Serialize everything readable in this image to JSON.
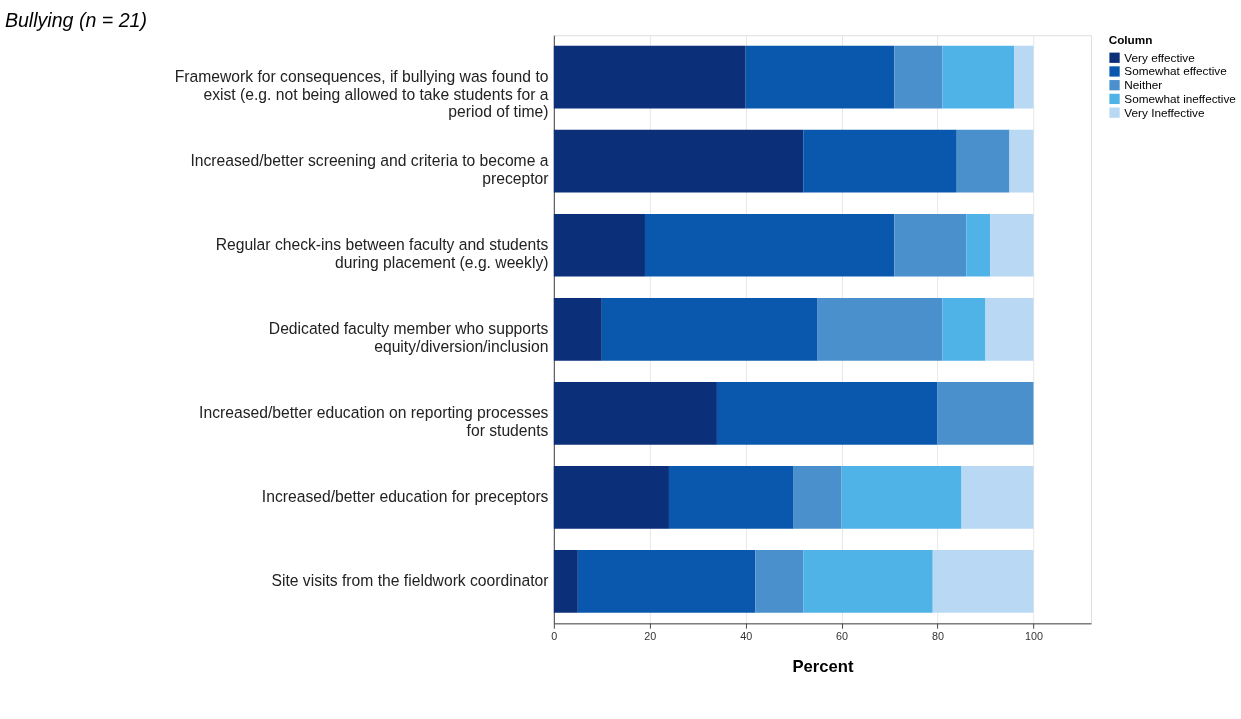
{
  "chart_data": {
    "type": "bar",
    "orientation": "horizontal",
    "stacked": true,
    "title": "Bullying (n = 21)",
    "categories": [
      "Framework for consequences, if bullying was found to exist (e.g. not being allowed to take students for a period of time)",
      "Increased/better screening and criteria to become a preceptor",
      "Regular check-ins between faculty and students during placement (e.g. weekly)",
      "Dedicated faculty member who supports equity/diversion/inclusion",
      "Increased/better education on reporting processes for students",
      "Increased/better education for preceptors",
      "Site visits from the fieldwork coordinator"
    ],
    "series": [
      {
        "name": "Very effective",
        "color": "#0b2f78",
        "values": [
          40,
          52,
          19,
          10,
          34,
          24,
          5
        ]
      },
      {
        "name": "Somewhat effective",
        "color": "#0a58ad",
        "values": [
          31,
          32,
          52,
          45,
          46,
          26,
          37
        ]
      },
      {
        "name": "Neither",
        "color": "#4a90cc",
        "values": [
          10,
          11,
          15,
          26,
          20,
          10,
          10
        ]
      },
      {
        "name": "Somewhat ineffective",
        "color": "#50b3e8",
        "values": [
          15,
          0,
          5,
          9,
          0,
          25,
          27
        ]
      },
      {
        "name": "Very Ineffective",
        "color": "#b8d8f4",
        "values": [
          4,
          5,
          9,
          10,
          0,
          15,
          21
        ]
      }
    ],
    "xlabel": "Percent",
    "legend_title": "Column",
    "xlim": [
      0,
      112
    ],
    "xticks": [
      0,
      20,
      40,
      60,
      80,
      100
    ],
    "grid": "x",
    "legend": "top right"
  }
}
